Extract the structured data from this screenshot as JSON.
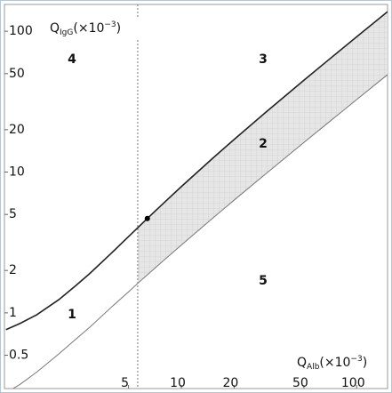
{
  "chart_data": {
    "type": "line",
    "log_x": true,
    "log_y": true,
    "xlabel": [
      "Q",
      "Alb",
      "(×10",
      "−3",
      ")"
    ],
    "ylabel": [
      "Q",
      "IgG",
      "(×10",
      "−3",
      ")"
    ],
    "x": [
      1,
      1.2,
      1.5,
      2,
      2.5,
      3,
      4,
      5,
      5.64,
      6.4,
      8,
      10,
      15,
      20,
      30,
      50,
      70,
      100,
      150
    ],
    "series": [
      {
        "color": "#222222",
        "values": [
          0.76,
          0.84,
          0.97,
          1.24,
          1.56,
          1.9,
          2.66,
          3.48,
          4.02,
          4.68,
          6.08,
          7.88,
          12.44,
          17.04,
          26.29,
          44.86,
          63.44,
          91.33,
          137.82
        ]
      },
      {
        "color": "#777777",
        "values": [
          0.27,
          0.31,
          0.38,
          0.51,
          0.65,
          0.79,
          1.1,
          1.41,
          1.62,
          1.86,
          2.38,
          3.03,
          4.67,
          6.32,
          9.61,
          16.21,
          22.8,
          32.7,
          49.2
        ]
      }
    ],
    "fill_color": "#e6e6e6",
    "vline": 5.64,
    "point": {
      "x": 6.4,
      "y": 4.68
    },
    "annotations": [
      "4",
      "3",
      "2",
      "1",
      "5"
    ],
    "xlim": [
      0.98,
      150
    ],
    "ylim": [
      0.29,
      155
    ],
    "xticks": [
      5,
      10,
      20,
      50,
      100
    ],
    "yticks": [
      0.5,
      1,
      2,
      5,
      10,
      20,
      50,
      100
    ]
  }
}
